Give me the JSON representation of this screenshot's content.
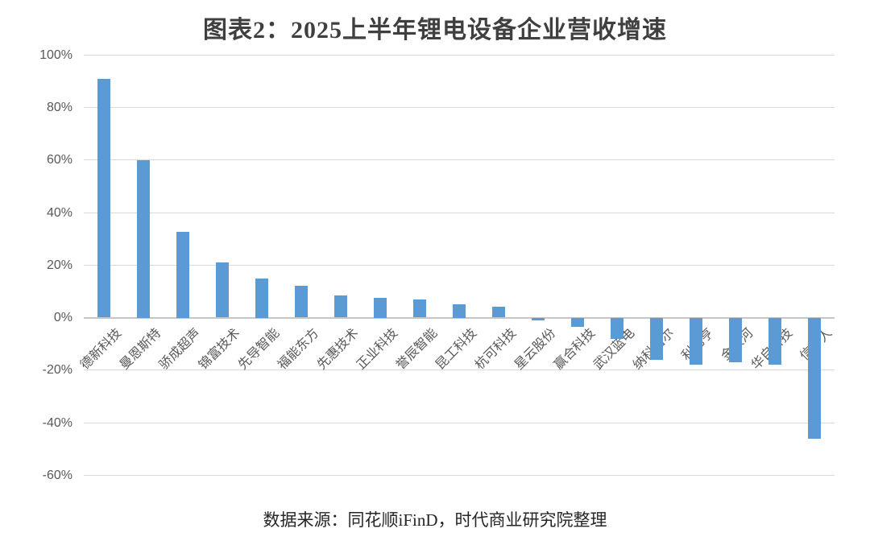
{
  "title": "图表2：2025上半年锂电设备企业营收增速",
  "footer": "数据来源：同花顺iFinD，时代商业研究院整理",
  "chart_data": {
    "type": "bar",
    "title": "图表2：2025上半年锂电设备企业营收增速",
    "categories": [
      "德新科技",
      "曼恩斯特",
      "骄成超声",
      "锦富技术",
      "先导智能",
      "福能东方",
      "先惠技术",
      "正业科技",
      "誉辰智能",
      "昆工科技",
      "杭可科技",
      "星云股份",
      "赢合科技",
      "武汉蓝电",
      "纳科诺尔",
      "利元亨",
      "金银河",
      "华自科技",
      "信宇人"
    ],
    "values": [
      91,
      60,
      32.5,
      21,
      15,
      12,
      8.5,
      7.5,
      7,
      5,
      4,
      -1,
      -3.5,
      -8,
      -16,
      -18,
      -17,
      -18,
      -46
    ],
    "xlabel": "",
    "ylabel": "",
    "ylim": [
      -60,
      100
    ],
    "ytick_step": 20,
    "ytick_suffix": "%",
    "grid": true,
    "legend": "none",
    "bar_color": "#5b9bd5",
    "gridline_color": "#d9d9d9",
    "zero_line_color": "#c6c6c6",
    "axis_label_color": "#595959",
    "source_note": "数据来源：同花顺iFinD，时代商业研究院整理"
  }
}
